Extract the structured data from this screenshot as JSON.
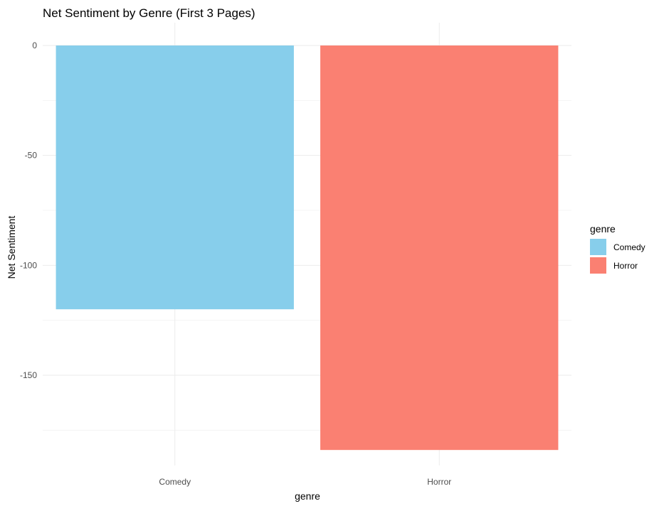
{
  "chart_data": {
    "type": "bar",
    "title": "Net Sentiment by Genre (First 3 Pages)",
    "xlabel": "genre",
    "ylabel": "Net Sentiment",
    "categories": [
      "Comedy",
      "Horror"
    ],
    "values": [
      -120,
      -184
    ],
    "colors": [
      "#87CEEB",
      "#FA8072"
    ],
    "ylim": [
      -191,
      0
    ],
    "yticks": [
      0,
      -50,
      -100,
      -150
    ],
    "ytick_labels": [
      "0",
      "-50",
      "-100",
      "-150"
    ],
    "grid": true,
    "legend": {
      "title": "genre",
      "position": "right",
      "entries": [
        "Comedy",
        "Horror"
      ]
    }
  }
}
